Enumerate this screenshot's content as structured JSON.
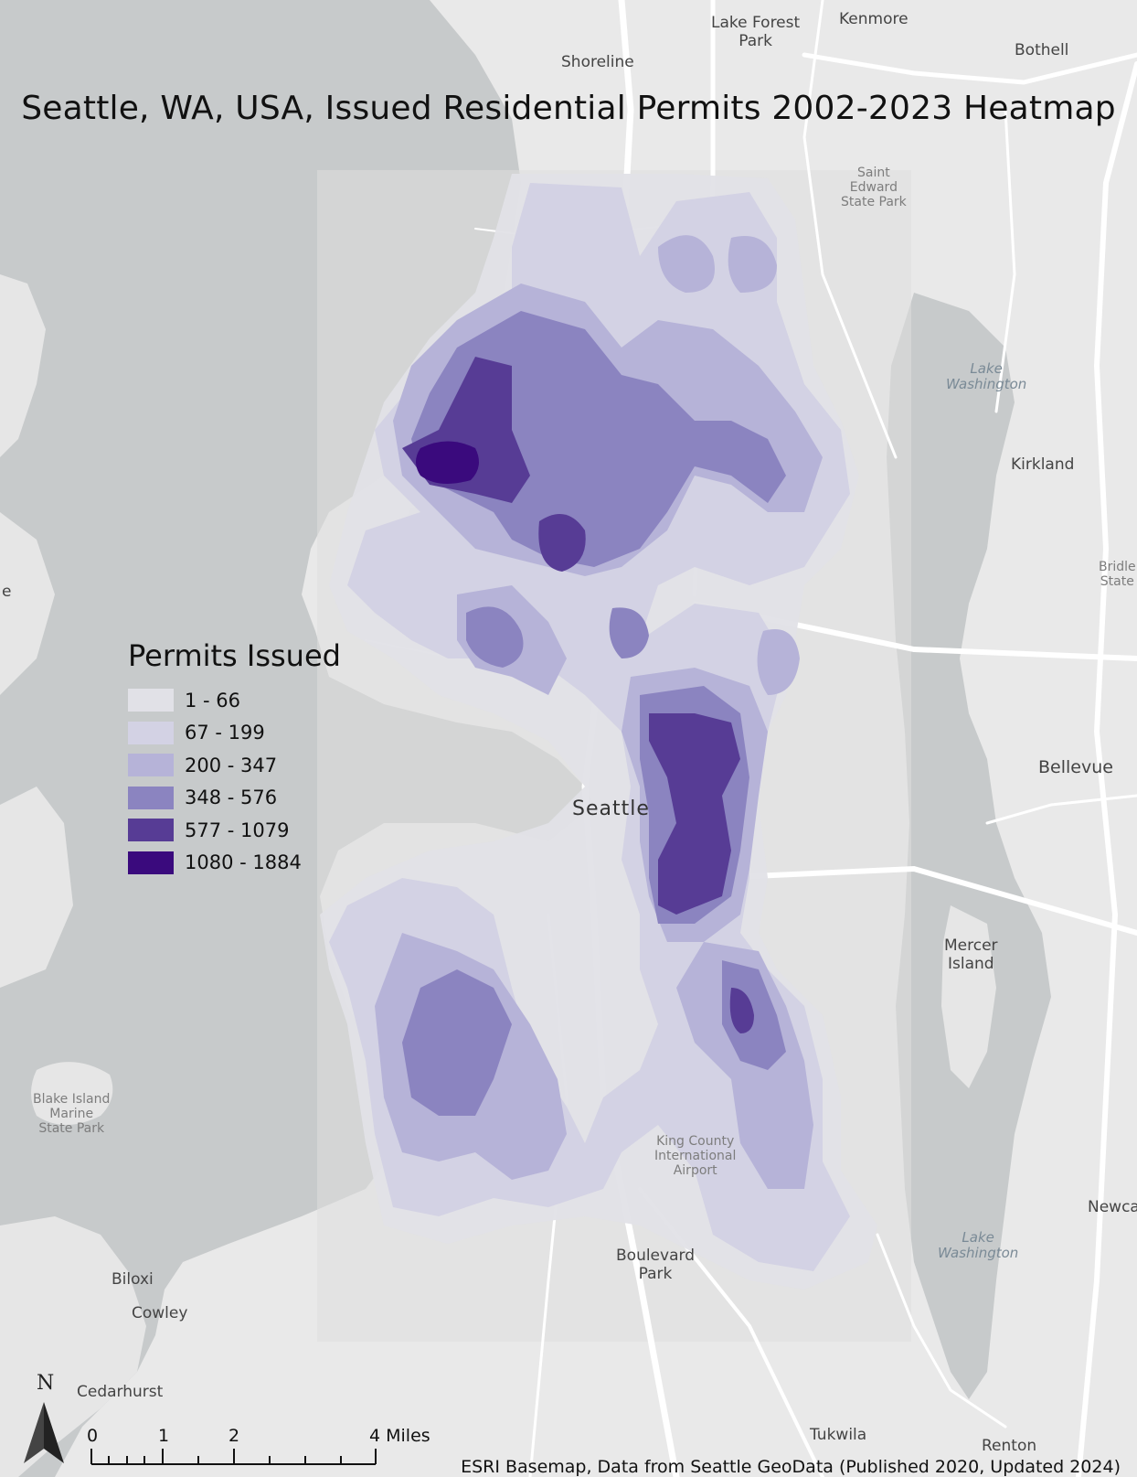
{
  "map": {
    "title": "Seattle, WA, USA, Issued Residential Permits 2002-2023 Heatmap",
    "credit": "ESRI Basemap, Data from Seattle GeoData (Published 2020, Updated 2024)",
    "colors": {
      "land": "#e9e9e9",
      "water": "#c7cacb",
      "road": "#ffffff",
      "study_extent": "#dedede"
    },
    "legend": {
      "title": "Permits Issued",
      "classes": [
        {
          "label": "1 - 66",
          "color": "#e1e1e7"
        },
        {
          "label": "67 - 199",
          "color": "#d3d2e4"
        },
        {
          "label": "200 - 347",
          "color": "#b6b3d8"
        },
        {
          "label": "348 - 576",
          "color": "#8b84c0"
        },
        {
          "label": "577 - 1079",
          "color": "#573c95"
        },
        {
          "label": "1080 - 1884",
          "color": "#3a0a7d"
        }
      ]
    },
    "scale_bar": {
      "labels": [
        "0",
        "1",
        "2",
        "4 Miles"
      ]
    },
    "north_arrow": {
      "letter": "N"
    },
    "places": {
      "lake_forest_park": "Lake Forest\nPark",
      "kenmore": "Kenmore",
      "bothell": "Bothell",
      "shoreline": "Shoreline",
      "saint_edward": "Saint\nEdward\nState Park",
      "lake_washington_n": "Lake\nWashington",
      "kirkland": "Kirkland",
      "bridle": "Bridle\nState",
      "bellevue": "Bellevue",
      "seattle": "Seattle",
      "mercer_island": "Mercer\nIsland",
      "blake_island": "Blake Island\nMarine\nState Park",
      "king_county_airport": "King County\nInternational\nAirport",
      "newcastle": "Newca",
      "lake_washington_s": "Lake\nWashington",
      "boulevard_park": "Boulevard\nPark",
      "biloxi": "Biloxi",
      "cowley": "Cowley",
      "cedarhurst": "Cedarhurst",
      "tukwila": "Tukwila",
      "renton": "Renton",
      "left_edge": "e"
    }
  }
}
